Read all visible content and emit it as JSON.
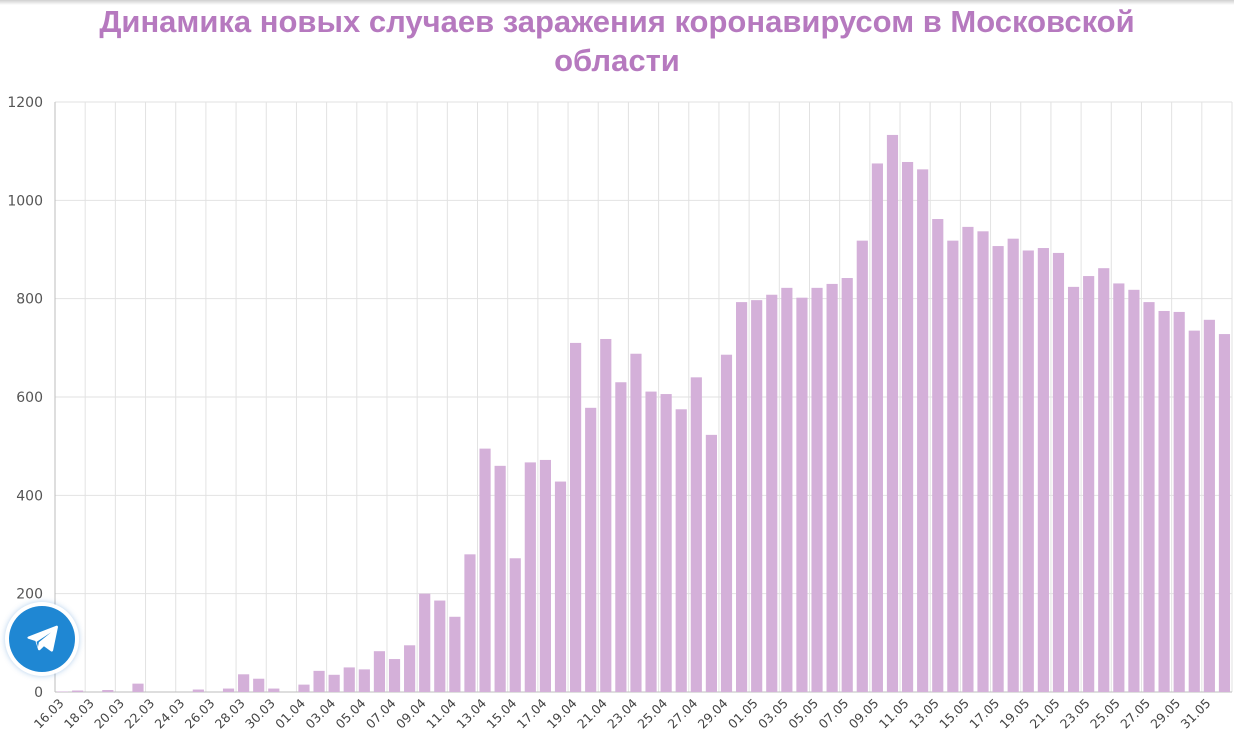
{
  "colors": {
    "bar": "#d4b0d9",
    "title": "#b679bf",
    "grid": "#e2e2e2",
    "telegram": "#1f87d3"
  },
  "telegram_button": {
    "icon": "telegram-paper-plane-icon"
  },
  "chart_data": {
    "type": "bar",
    "title": "Динамика новых случаев заражения коронавирусом в Московской области",
    "xlabel": "",
    "ylabel": "",
    "ylim": [
      0,
      1200
    ],
    "yticks": [
      0,
      200,
      400,
      600,
      800,
      1000,
      1200
    ],
    "grid": true,
    "legend": "none",
    "categories": [
      "16.03",
      "17.03",
      "18.03",
      "19.03",
      "20.03",
      "21.03",
      "22.03",
      "23.03",
      "24.03",
      "25.03",
      "26.03",
      "27.03",
      "28.03",
      "29.03",
      "30.03",
      "31.03",
      "01.04",
      "02.04",
      "03.04",
      "04.04",
      "05.04",
      "06.04",
      "07.04",
      "08.04",
      "09.04",
      "10.04",
      "11.04",
      "12.04",
      "13.04",
      "14.04",
      "15.04",
      "16.04",
      "17.04",
      "18.04",
      "19.04",
      "20.04",
      "21.04",
      "22.04",
      "23.04",
      "24.04",
      "25.04",
      "26.04",
      "27.04",
      "28.04",
      "29.04",
      "30.04",
      "01.05",
      "02.05",
      "03.05",
      "04.05",
      "05.05",
      "06.05",
      "07.05",
      "08.05",
      "09.05",
      "10.05",
      "11.05",
      "12.05",
      "13.05",
      "14.05",
      "15.05",
      "16.05",
      "17.05",
      "18.05",
      "19.05",
      "20.05",
      "21.05",
      "22.05",
      "23.05",
      "24.05",
      "25.05",
      "26.05",
      "27.05",
      "28.05",
      "29.05",
      "30.05",
      "31.05",
      "01.06"
    ],
    "tick_labels": [
      "16.03",
      "18.03",
      "20.03",
      "22.03",
      "24.03",
      "26.03",
      "28.03",
      "30.03",
      "01.04",
      "03.04",
      "05.04",
      "07.04",
      "09.04",
      "11.04",
      "13.04",
      "15.04",
      "17.04",
      "19.04",
      "21.04",
      "23.04",
      "25.04",
      "27.04",
      "29.04",
      "01.05",
      "03.05",
      "05.05",
      "07.05",
      "09.05",
      "11.05",
      "13.05",
      "15.05",
      "17.05",
      "19.05",
      "21.05",
      "23.05",
      "25.05",
      "27.05",
      "29.05",
      "31.05"
    ],
    "values": [
      1,
      3,
      0,
      4,
      0,
      17,
      0,
      0,
      0,
      5,
      0,
      7,
      36,
      27,
      7,
      0,
      15,
      43,
      35,
      50,
      46,
      83,
      67,
      95,
      200,
      186,
      153,
      280,
      495,
      460,
      272,
      467,
      472,
      428,
      710,
      578,
      718,
      630,
      688,
      611,
      606,
      575,
      640,
      523,
      686,
      793,
      797,
      808,
      822,
      802,
      822,
      830,
      842,
      918,
      1075,
      1133,
      1078,
      1063,
      962,
      918,
      946,
      937,
      907,
      922,
      898,
      903,
      893,
      824,
      846,
      862,
      831,
      818,
      793,
      775,
      773,
      735,
      757,
      728
    ]
  }
}
